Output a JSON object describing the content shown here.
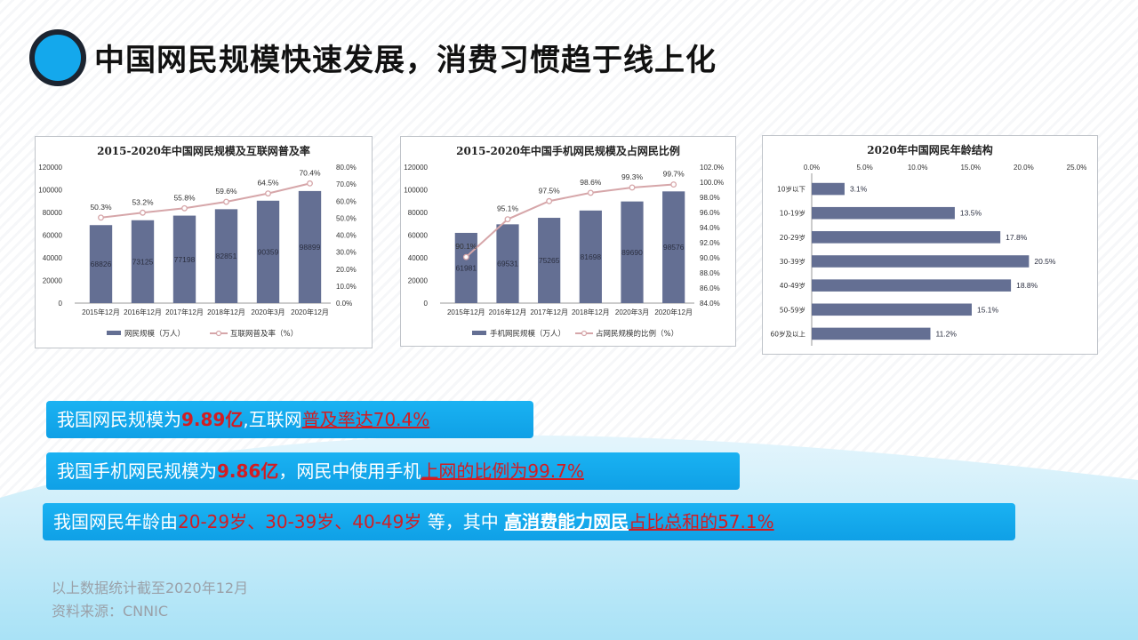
{
  "page": {
    "title": "中国网民规模快速发展，消费习惯趋于线上化"
  },
  "chart_data": [
    {
      "type": "bar",
      "title": "2015-2020年中国网民规模及互联网普及率",
      "categories": [
        "2015年12月",
        "2016年12月",
        "2017年12月",
        "2018年12月",
        "2020年3月",
        "2020年12月"
      ],
      "series": [
        {
          "name": "网民规模（万人）",
          "type": "bar",
          "axis": "left",
          "values": [
            68826,
            73125,
            77198,
            82851,
            90359,
            98899
          ],
          "labels": [
            "68826",
            "73125",
            "77198",
            "82851",
            "90359",
            "98899"
          ],
          "color": "#646f93"
        },
        {
          "name": "互联网普及率（%）",
          "type": "line",
          "axis": "right",
          "values": [
            50.3,
            53.2,
            55.8,
            59.6,
            64.5,
            70.4
          ],
          "labels": [
            "50.3%",
            "53.2%",
            "55.8%",
            "59.6%",
            "64.5%",
            "70.4%"
          ],
          "color": "#d6a6a9"
        }
      ],
      "ylim_left": [
        0,
        120000
      ],
      "yticks_left": [
        "0",
        "20000",
        "40000",
        "60000",
        "80000",
        "100000",
        "120000"
      ],
      "ylim_right": [
        0,
        80
      ],
      "yticks_right": [
        "0.0%",
        "10.0%",
        "20.0%",
        "30.0%",
        "40.0%",
        "50.0%",
        "60.0%",
        "70.0%",
        "80.0%"
      ],
      "legend_position": "bottom"
    },
    {
      "type": "bar",
      "title": "2015-2020年中国手机网民规模及占网民比例",
      "categories": [
        "2015年12月",
        "2016年12月",
        "2017年12月",
        "2018年12月",
        "2020年3月",
        "2020年12月"
      ],
      "series": [
        {
          "name": "手机网民规模（万人）",
          "type": "bar",
          "axis": "left",
          "values": [
            61981,
            69531,
            75265,
            81698,
            89690,
            98576
          ],
          "labels": [
            "61981",
            "69531",
            "75265",
            "81698",
            "89690",
            "98576"
          ],
          "color": "#646f93"
        },
        {
          "name": "占网民规模的比例（%）",
          "type": "line",
          "axis": "right",
          "values": [
            90.1,
            95.1,
            97.5,
            98.6,
            99.3,
            99.7
          ],
          "labels": [
            "90.1%",
            "95.1%",
            "97.5%",
            "98.6%",
            "99.3%",
            "99.7%"
          ],
          "color": "#d6a6a9"
        }
      ],
      "ylim_left": [
        0,
        120000
      ],
      "yticks_left": [
        "0",
        "20000",
        "40000",
        "60000",
        "80000",
        "100000",
        "120000"
      ],
      "ylim_right": [
        84,
        102
      ],
      "yticks_right": [
        "84.0%",
        "86.0%",
        "88.0%",
        "90.0%",
        "92.0%",
        "94.0%",
        "96.0%",
        "98.0%",
        "100.0%",
        "102.0%"
      ],
      "legend_position": "bottom"
    },
    {
      "type": "bar",
      "orientation": "horizontal",
      "title": "2020年中国网民年龄结构",
      "categories": [
        "10岁以下",
        "10-19岁",
        "20-29岁",
        "30-39岁",
        "40-49岁",
        "50-59岁",
        "60岁及以上"
      ],
      "values": [
        3.1,
        13.5,
        17.8,
        20.5,
        18.8,
        15.1,
        11.2
      ],
      "labels": [
        "3.1%",
        "13.5%",
        "17.8%",
        "20.5%",
        "18.8%",
        "15.1%",
        "11.2%"
      ],
      "xlim": [
        0,
        25
      ],
      "xticks": [
        "0.0%",
        "5.0%",
        "10.0%",
        "15.0%",
        "20.0%",
        "25.0%"
      ],
      "color": "#646f93"
    }
  ],
  "banners": [
    {
      "parts": [
        "我国网民规模为",
        "9.89亿",
        ",互联网",
        "普及率达70.4%"
      ]
    },
    {
      "parts": [
        "我国手机网民规模为",
        "9.86亿",
        "，网民中使用手机",
        "上网的比例为99.7%"
      ]
    },
    {
      "parts": [
        "我国网民年龄由",
        "20-29岁、30-39岁、40-49岁",
        " 等，其中 ",
        "高消费能力网民",
        "占比总和的57.1%"
      ]
    }
  ],
  "footnotes": {
    "line1": "以上数据统计截至2020年12月",
    "line2": "资料来源：CNNIC"
  }
}
